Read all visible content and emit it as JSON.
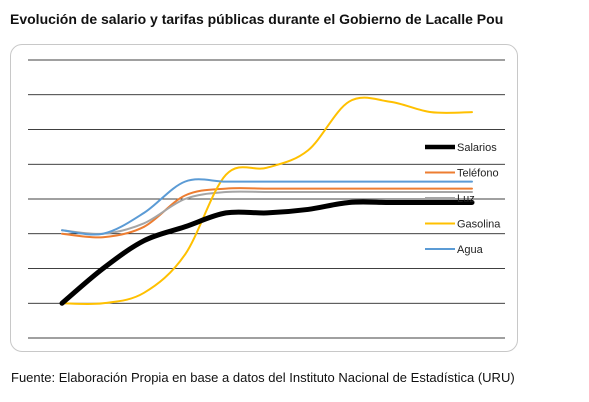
{
  "title": "Evolución de salario y tarifas públicas durante el Gobierno de Lacalle Pou",
  "source": "Fuente: Elaboración Propia en base a datos del Instituto Nacional de Estadística (URU)",
  "chart_data": {
    "type": "line",
    "title": "",
    "xlabel": "",
    "ylabel": "",
    "x": [
      0,
      1,
      2,
      3,
      4,
      5,
      6,
      7,
      8,
      9,
      10
    ],
    "ylim": [
      0,
      8
    ],
    "grid": true,
    "legend_position": "right",
    "series": [
      {
        "name": "Salarios",
        "color": "#000000",
        "width": 5,
        "values": [
          1.0,
          2.0,
          2.8,
          3.2,
          3.6,
          3.6,
          3.7,
          3.9,
          3.9,
          3.9,
          3.9
        ]
      },
      {
        "name": "Teléfono",
        "color": "#ed7d31",
        "width": 2,
        "values": [
          3.0,
          2.9,
          3.2,
          4.1,
          4.3,
          4.3,
          4.3,
          4.3,
          4.3,
          4.3,
          4.3
        ]
      },
      {
        "name": "Luz",
        "color": "#a5a5a5",
        "width": 2,
        "values": [
          3.1,
          3.0,
          3.3,
          4.0,
          4.2,
          4.2,
          4.2,
          4.2,
          4.2,
          4.2,
          4.2
        ]
      },
      {
        "name": "Gasolina",
        "color": "#ffc000",
        "width": 2,
        "values": [
          1.0,
          1.0,
          1.3,
          2.4,
          4.7,
          4.9,
          5.4,
          6.8,
          6.8,
          6.5,
          6.5
        ]
      },
      {
        "name": "Agua",
        "color": "#5b9bd5",
        "width": 2,
        "values": [
          3.1,
          3.0,
          3.6,
          4.5,
          4.5,
          4.5,
          4.5,
          4.5,
          4.5,
          4.5,
          4.5
        ]
      }
    ]
  }
}
